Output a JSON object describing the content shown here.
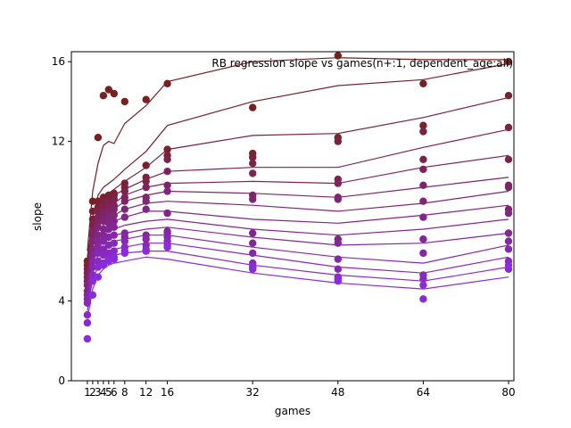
{
  "chart_data": {
    "type": "scatter",
    "title": "RB regression slope vs games(n+:1, dependent_age:all)",
    "xlabel": "games",
    "ylabel": "slope",
    "xlim": [
      -2,
      81
    ],
    "ylim": [
      0,
      16.5
    ],
    "x_ticks": [
      1,
      2,
      3,
      4,
      5,
      6,
      8,
      12,
      16,
      32,
      48,
      64,
      80
    ],
    "x_tick_labels": [
      "1",
      "2",
      "3",
      "4",
      "5",
      "6",
      "8",
      "12",
      "16",
      "32",
      "48",
      "64",
      "80"
    ],
    "y_ticks": [
      0,
      4,
      12,
      16
    ],
    "grid": false,
    "legend": "none",
    "color_start": "#7a1f1f",
    "color_end": "#8a2be2",
    "x": [
      1,
      2,
      3,
      4,
      5,
      6,
      8,
      12,
      16,
      32,
      48,
      64,
      80
    ],
    "series": [
      {
        "points": [
          6.0,
          9.0,
          12.2,
          14.3,
          14.6,
          14.4,
          14.0,
          14.1,
          14.9,
          13.7,
          16.3,
          14.9,
          16.0
        ],
        "line": [
          6.5,
          9.5,
          10.9,
          11.8,
          12.0,
          11.9,
          12.9,
          13.8,
          15.0,
          16.0,
          16.2,
          16.1,
          16.1
        ]
      },
      {
        "points": [
          5.8,
          8.5,
          9.0,
          9.2,
          9.3,
          9.4,
          9.9,
          10.8,
          11.6,
          11.4,
          12.2,
          12.8,
          14.3
        ],
        "line": [
          6.2,
          8.2,
          9.3,
          9.7,
          9.9,
          10.1,
          10.6,
          11.5,
          12.8,
          14.0,
          14.8,
          15.1,
          15.9
        ]
      },
      {
        "points": [
          5.6,
          8.1,
          8.7,
          9.0,
          9.1,
          9.3,
          9.7,
          10.2,
          11.3,
          11.2,
          12.0,
          12.5,
          12.7
        ],
        "line": [
          5.9,
          7.8,
          8.7,
          9.1,
          9.4,
          9.6,
          10.0,
          10.7,
          11.6,
          12.3,
          12.4,
          13.2,
          14.2
        ]
      },
      {
        "points": [
          5.4,
          7.8,
          8.5,
          8.7,
          8.9,
          9.1,
          9.5,
          10.0,
          11.1,
          10.9,
          10.1,
          11.1,
          11.1
        ],
        "line": [
          5.6,
          7.5,
          8.3,
          8.7,
          9.0,
          9.3,
          9.6,
          10.1,
          10.5,
          10.7,
          10.7,
          11.7,
          12.6
        ]
      },
      {
        "points": [
          5.2,
          7.5,
          8.2,
          8.5,
          8.7,
          8.8,
          9.2,
          9.7,
          10.5,
          10.4,
          9.9,
          10.6,
          9.8
        ],
        "line": [
          5.3,
          7.2,
          8.0,
          8.4,
          8.7,
          8.9,
          9.3,
          9.7,
          9.9,
          10.0,
          9.9,
          10.7,
          11.3
        ]
      },
      {
        "points": [
          5.0,
          7.3,
          8.0,
          8.3,
          8.5,
          8.6,
          9.0,
          9.2,
          9.8,
          9.3,
          9.2,
          9.8,
          9.7
        ],
        "line": [
          5.1,
          6.9,
          7.7,
          8.1,
          8.4,
          8.6,
          9.0,
          9.3,
          9.5,
          9.4,
          9.2,
          9.7,
          10.2
        ]
      },
      {
        "points": [
          4.8,
          7.0,
          7.7,
          8.0,
          8.2,
          8.3,
          8.6,
          9.0,
          9.5,
          9.1,
          9.1,
          9.0,
          8.6
        ],
        "line": [
          4.9,
          6.7,
          7.5,
          7.8,
          8.1,
          8.3,
          8.6,
          8.9,
          9.0,
          8.8,
          8.5,
          8.9,
          9.5
        ]
      },
      {
        "points": [
          4.5,
          6.6,
          7.3,
          7.6,
          7.9,
          8.0,
          8.2,
          8.6,
          8.4,
          7.4,
          7.1,
          8.2,
          8.4
        ],
        "line": [
          4.7,
          6.5,
          7.2,
          7.6,
          7.8,
          8.0,
          8.2,
          8.5,
          8.5,
          8.1,
          7.9,
          8.3,
          8.8
        ]
      },
      {
        "points": [
          4.3,
          6.3,
          7.0,
          7.3,
          7.6,
          7.7,
          7.4,
          7.3,
          7.5,
          6.9,
          6.9,
          7.1,
          7.4
        ],
        "line": [
          4.5,
          6.2,
          6.9,
          7.3,
          7.5,
          7.6,
          7.8,
          8.0,
          8.1,
          7.6,
          7.3,
          7.6,
          8.1
        ]
      },
      {
        "points": [
          4.1,
          6.0,
          6.7,
          7.0,
          7.2,
          7.3,
          7.2,
          7.1,
          7.4,
          6.4,
          6.1,
          6.4,
          7.0
        ],
        "line": [
          4.3,
          6.0,
          6.6,
          7.0,
          7.2,
          7.3,
          7.4,
          7.6,
          7.7,
          7.2,
          6.8,
          6.9,
          7.4
        ]
      },
      {
        "points": [
          3.9,
          5.7,
          6.4,
          6.6,
          6.8,
          6.9,
          7.0,
          6.8,
          7.2,
          5.9,
          5.6,
          5.3,
          6.6
        ],
        "line": [
          4.1,
          5.7,
          6.3,
          6.6,
          6.9,
          7.0,
          7.1,
          7.3,
          7.3,
          6.7,
          6.2,
          5.9,
          6.8
        ]
      },
      {
        "points": [
          3.3,
          5.3,
          6.0,
          6.3,
          6.4,
          6.5,
          6.7,
          6.6,
          7.0,
          5.7,
          5.2,
          5.1,
          6.0
        ],
        "line": [
          3.8,
          5.4,
          6.0,
          6.3,
          6.5,
          6.6,
          6.7,
          6.9,
          6.9,
          6.3,
          5.7,
          5.4,
          6.2
        ]
      },
      {
        "points": [
          2.9,
          5.0,
          5.7,
          5.9,
          6.1,
          6.2,
          6.5,
          6.5,
          6.8,
          5.6,
          5.1,
          4.1,
          5.6
        ],
        "line": [
          3.5,
          5.1,
          5.7,
          6.0,
          6.2,
          6.3,
          6.4,
          6.5,
          6.5,
          5.8,
          5.3,
          5.0,
          5.7
        ]
      },
      {
        "points": [
          2.1,
          4.3,
          5.2,
          5.8,
          6.0,
          6.1,
          6.4,
          6.5,
          6.7,
          5.7,
          5.0,
          4.8,
          5.8
        ],
        "line": [
          3.1,
          4.6,
          5.3,
          5.6,
          5.8,
          5.9,
          6.0,
          6.2,
          6.1,
          5.4,
          4.9,
          4.6,
          5.2
        ]
      }
    ]
  }
}
